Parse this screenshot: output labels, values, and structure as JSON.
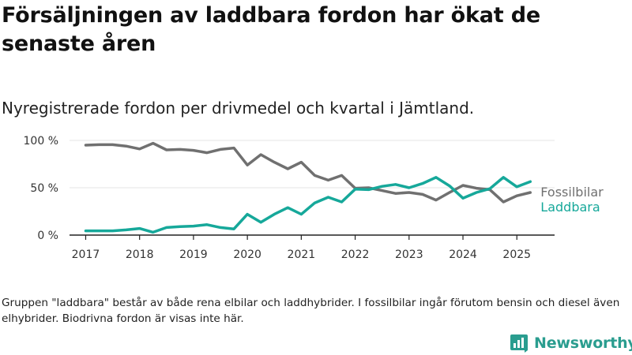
{
  "header": {
    "title": "Försäljningen av laddbara fordon har ökat de senaste åren",
    "subtitle": "Nyregistrerade fordon per drivmedel och kvartal i Jämtland."
  },
  "footer": {
    "note": "Gruppen \"laddbara\" består av både rena elbilar och laddhybrider. I fossilbilar ingår förutom bensin och diesel även elhybrider. Biodrivna fordon är visas inte här.",
    "brand": "Newsworthy",
    "brand_icon": "bar-chart-logo-icon"
  },
  "colors": {
    "fossil": "#707070",
    "laddbara": "#16a89a",
    "grid": "#e6e6e6",
    "axis": "#222222",
    "brand": "#2a9d8f"
  },
  "chart_data": {
    "type": "line",
    "title": "",
    "xlabel": "",
    "ylabel": "",
    "x": [
      2017.0,
      2017.25,
      2017.5,
      2017.75,
      2018.0,
      2018.25,
      2018.5,
      2018.75,
      2019.0,
      2019.25,
      2019.5,
      2019.75,
      2020.0,
      2020.25,
      2020.5,
      2020.75,
      2021.0,
      2021.25,
      2021.5,
      2021.75,
      2022.0,
      2022.25,
      2022.5,
      2022.75,
      2023.0,
      2023.25,
      2023.5,
      2023.75,
      2024.0,
      2024.25,
      2024.5,
      2024.75,
      2025.0,
      2025.25
    ],
    "xlim": [
      2016.7,
      2025.7
    ],
    "x_ticks": [
      2017,
      2018,
      2019,
      2020,
      2021,
      2022,
      2023,
      2024,
      2025
    ],
    "x_tick_labels": [
      "2017",
      "2018",
      "2019",
      "2020",
      "2021",
      "2022",
      "2023",
      "2024",
      "2025"
    ],
    "ylim": [
      0,
      100
    ],
    "y_ticks": [
      0,
      50,
      100
    ],
    "y_tick_labels": [
      "0 %",
      "50 %",
      "100 %"
    ],
    "grid": "horizontal",
    "legend": "direct labels at line ends",
    "series": [
      {
        "name": "Fossilbilar",
        "color_key": "fossil",
        "values": [
          95,
          95.5,
          95.5,
          94,
          91,
          97,
          90,
          90.5,
          89.5,
          87,
          90.5,
          92,
          74,
          85,
          77,
          70,
          77,
          63,
          58,
          63,
          49.5,
          50,
          47,
          44,
          45,
          43,
          37,
          45,
          52.5,
          49.5,
          48,
          35,
          41.5,
          45
        ]
      },
      {
        "name": "Laddbara",
        "color_key": "laddbara",
        "values": [
          4.5,
          4.5,
          4.5,
          5.5,
          7,
          3,
          8,
          9,
          9.5,
          11,
          8,
          6.5,
          22,
          13.5,
          22,
          29,
          22,
          34,
          40,
          35,
          48.5,
          48,
          51.5,
          53.5,
          50,
          54.5,
          61,
          52,
          39,
          45,
          49,
          61,
          51,
          56.5
        ]
      }
    ]
  }
}
